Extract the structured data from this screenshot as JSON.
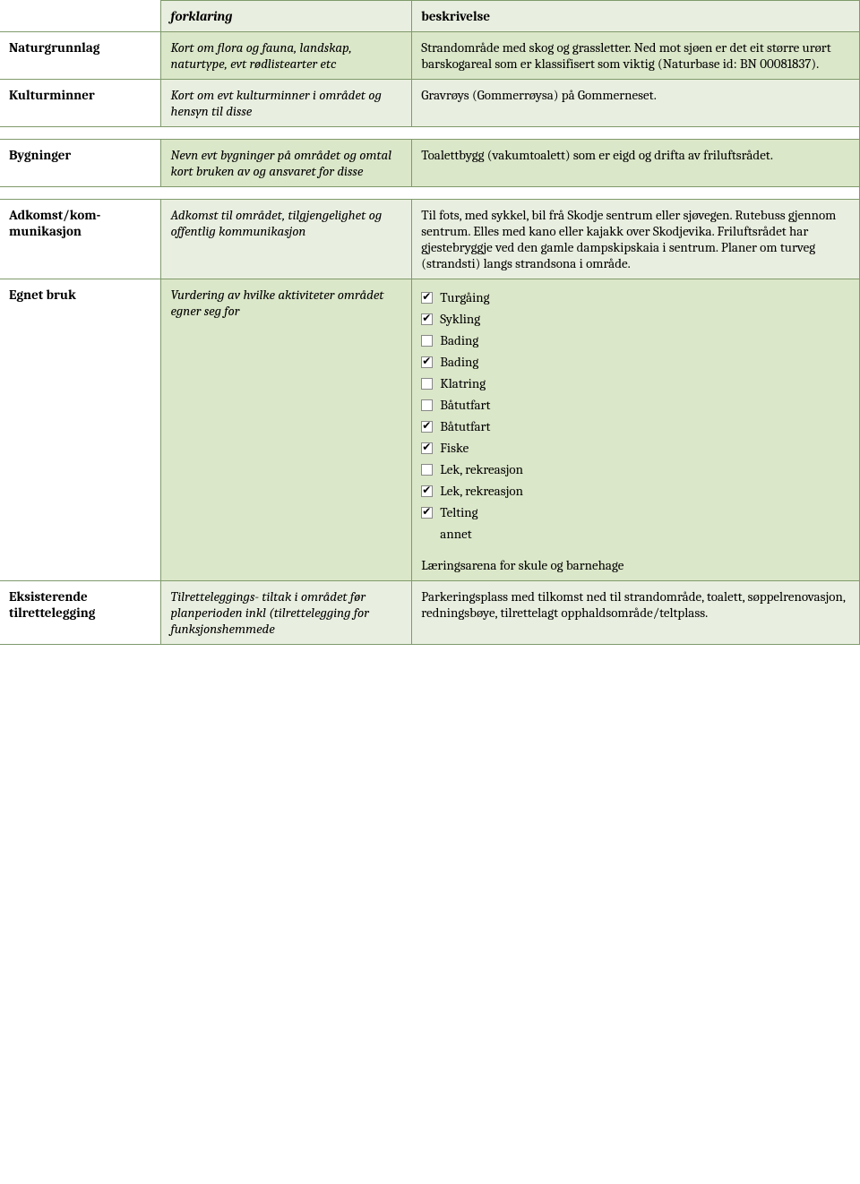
{
  "headers": {
    "forklaring": "forklaring",
    "beskrivelse": "beskrivelse"
  },
  "rows": [
    {
      "label": "Naturgrunnlag",
      "explain": "Kort om flora og fauna, landskap, naturtype, evt rødlistearter etc",
      "desc": "Strandområde med skog og grassletter. Ned mot sjøen er det eit større urørt barskogareal som er klassifisert som viktig (Naturbase id: BN 00081837)."
    },
    {
      "label": "Kulturminner",
      "explain": "Kort om evt kulturminner i området og hensyn til disse",
      "desc": "Gravrøys (Gommerrøysa) på Gommerneset."
    },
    {
      "label": "Bygninger",
      "explain": "Nevn evt bygninger på området og omtal kort bruken av og ansvaret  for disse",
      "desc": "Toalettbygg (vakumtoalett) som er eigd og drifta av friluftsrådet."
    },
    {
      "label": "Adkomst/kom-munikasjon",
      "explain": "Adkomst til området, tilgjengelighet og offentlig kommunikasjon",
      "desc": "Til fots, med sykkel, bil frå Skodje sentrum eller sjøvegen. Rutebuss gjennom sentrum. Elles med kano eller kajakk over Skodjevika. Friluftsrådet har gjestebryggje ved den gamle dampskipskaia i sentrum. Planer om turveg (strandsti) langs strandsona i område."
    }
  ],
  "egnet": {
    "label": "Egnet bruk",
    "explain": "Vurdering av hvilke aktiviteter området egner seg for",
    "items": [
      {
        "label": "Turgåing",
        "checked": true
      },
      {
        "label": "Sykling",
        "checked": true
      },
      {
        "label": "Bading",
        "checked": false
      },
      {
        "label": "Bading",
        "checked": true
      },
      {
        "label": "Klatring",
        "checked": false
      },
      {
        "label": "Båtutfart",
        "checked": false
      },
      {
        "label": "Båtutfart",
        "checked": true
      },
      {
        "label": "Fiske",
        "checked": true
      },
      {
        "label": "Lek, rekreasjon",
        "checked": false
      },
      {
        "label": "Lek, rekreasjon",
        "checked": true
      },
      {
        "label": "Telting",
        "checked": true
      }
    ],
    "annet": "annet",
    "after": "Læringsarena for skule og barnehage"
  },
  "eksisterende": {
    "label": "Eksisterende tilrettelegging",
    "explain": "Tilretteleggings- tiltak i området før planperioden inkl (tilrettelegging for funksjonshemmede",
    "desc": "Parkeringsplass med tilkomst ned til strandområde, toalett, søppelrenovasjon, redningsbøye, tilrettelagt opphaldsområde/teltplass."
  },
  "colors": {
    "border": "#7f9a6b",
    "band_even": "#e9efe0",
    "band_odd": "#dbe7c9"
  }
}
